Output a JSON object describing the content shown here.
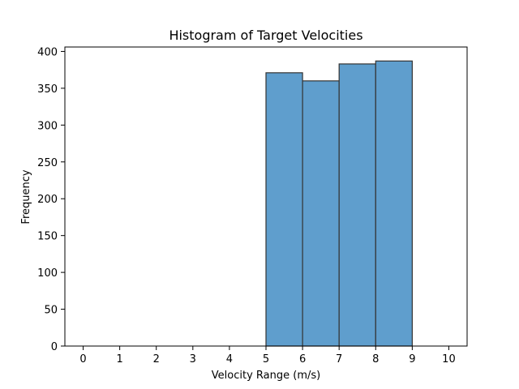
{
  "chart_data": {
    "type": "bar",
    "title": "Histogram of Target Velocities",
    "xlabel": "Velocity Range (m/s)",
    "ylabel": "Frequency",
    "bins": [
      {
        "start": 5,
        "end": 6,
        "value": 371
      },
      {
        "start": 6,
        "end": 7,
        "value": 360
      },
      {
        "start": 7,
        "end": 8,
        "value": 383
      },
      {
        "start": 8,
        "end": 9,
        "value": 387
      }
    ],
    "xlim": [
      -0.5,
      10.5
    ],
    "ylim": [
      0,
      406
    ],
    "xticks": [
      "0",
      "1",
      "2",
      "3",
      "4",
      "5",
      "6",
      "7",
      "8",
      "9",
      "10"
    ],
    "yticks": [
      "0",
      "50",
      "100",
      "150",
      "200",
      "250",
      "300",
      "350",
      "400"
    ],
    "bar_color": "#5f9ecd",
    "edge_color": "#333333",
    "grid": false,
    "legend": false
  }
}
